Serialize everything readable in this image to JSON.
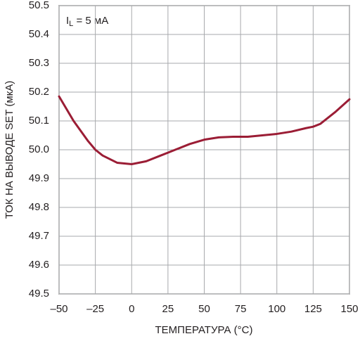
{
  "chart_data": {
    "type": "line",
    "annotation": {
      "main": "I",
      "sub": "L",
      "rest": " = 5 мА"
    },
    "xlabel": "ТЕМПЕРАТУРА (°C)",
    "ylabel": "ТОК НА ВЫВОДЕ SET (мкА)",
    "x": [
      -50,
      -40,
      -30,
      -25,
      -20,
      -10,
      0,
      10,
      20,
      25,
      30,
      40,
      50,
      60,
      70,
      75,
      80,
      90,
      100,
      110,
      120,
      125,
      130,
      140,
      150
    ],
    "series": [
      {
        "color": "#9b1d35",
        "values": [
          50.185,
          50.1,
          50.03,
          50.0,
          49.98,
          49.955,
          49.95,
          49.96,
          49.98,
          49.99,
          50.0,
          50.02,
          50.035,
          50.043,
          50.045,
          50.045,
          50.045,
          50.05,
          50.055,
          50.063,
          50.075,
          50.08,
          50.09,
          50.13,
          50.175
        ]
      }
    ],
    "xlim": [
      -50,
      150
    ],
    "xticks": [
      {
        "value": -50,
        "label": "–50"
      },
      {
        "value": -25,
        "label": "–25"
      },
      0,
      25,
      50,
      75,
      100,
      125,
      150
    ],
    "ylim": [
      49.5,
      50.5
    ],
    "yticks": [
      49.5,
      49.6,
      49.7,
      49.8,
      49.9,
      {
        "value": 50,
        "label": "50.0"
      },
      50.1,
      50.2,
      50.3,
      50.4,
      50.5
    ],
    "grid": true
  }
}
